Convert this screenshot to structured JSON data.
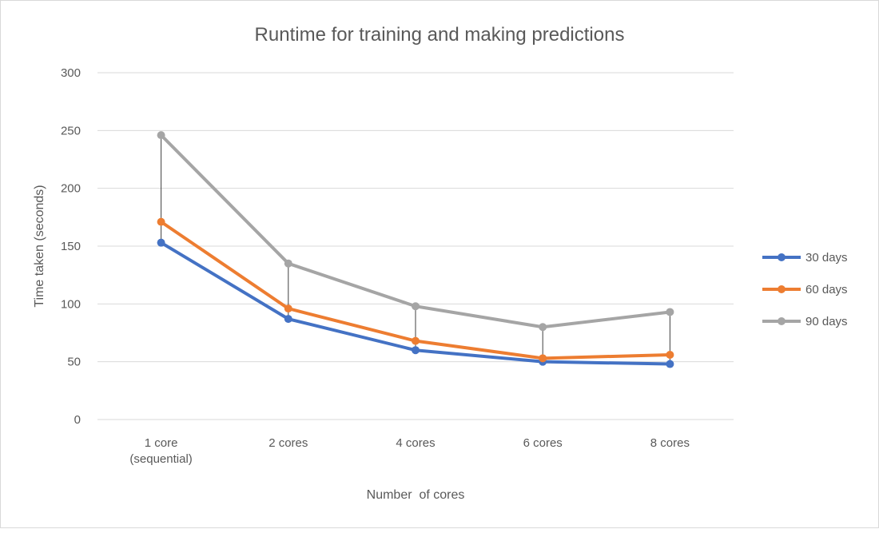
{
  "chart_data": {
    "type": "line",
    "title": "Runtime for training and making predictions",
    "xlabel": "Number  of cores",
    "ylabel": "Time taken (seconds)",
    "categories": [
      "1 core\n(sequential)",
      "2 cores",
      "4 cores",
      "6 cores",
      "8 cores"
    ],
    "ylim": [
      0,
      300
    ],
    "yticks": [
      0,
      50,
      100,
      150,
      200,
      250,
      300
    ],
    "grid": true,
    "legend_position": "right",
    "high_low_lines": true,
    "series": [
      {
        "name": "30 days",
        "color": "#4472C4",
        "values": [
          153,
          87,
          60,
          50,
          48
        ]
      },
      {
        "name": "60 days",
        "color": "#ED7D31",
        "values": [
          171,
          96,
          68,
          53,
          56
        ]
      },
      {
        "name": "90 days",
        "color": "#A5A5A5",
        "values": [
          246,
          135,
          98,
          80,
          93
        ]
      }
    ]
  }
}
